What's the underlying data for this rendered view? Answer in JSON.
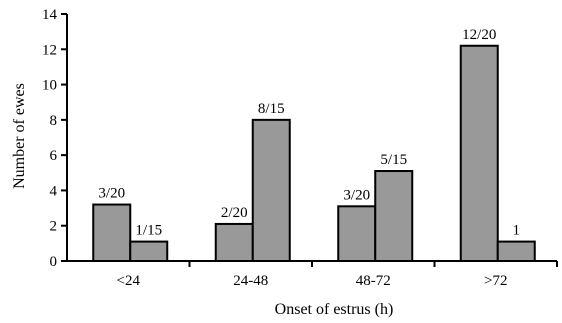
{
  "chart_data": {
    "type": "bar",
    "title": "",
    "xlabel": "Onset of estrus (h)",
    "ylabel": "Number of ewes",
    "categories": [
      "<24",
      "24-48",
      "48-72",
      ">72"
    ],
    "series": [
      {
        "values": [
          3.2,
          2.1,
          3.1,
          12.2
        ],
        "labels": [
          "3/20",
          "2/20",
          "3/20",
          "12/20"
        ],
        "color": "#999999"
      },
      {
        "values": [
          1.1,
          8.0,
          5.1,
          1.1
        ],
        "labels": [
          "1/15",
          "8/15",
          "5/15",
          "1"
        ],
        "color": "#999999"
      }
    ],
    "ylim": [
      0,
      14
    ],
    "yticks": [
      0,
      2,
      4,
      6,
      8,
      10,
      12,
      14
    ],
    "grid": false,
    "legend": "none"
  }
}
